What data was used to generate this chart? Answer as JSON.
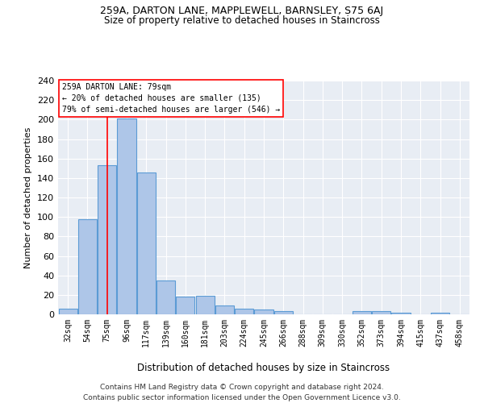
{
  "title": "259A, DARTON LANE, MAPPLEWELL, BARNSLEY, S75 6AJ",
  "subtitle": "Size of property relative to detached houses in Staincross",
  "xlabel": "Distribution of detached houses by size in Staincross",
  "ylabel": "Number of detached properties",
  "categories": [
    "32sqm",
    "54sqm",
    "75sqm",
    "96sqm",
    "117sqm",
    "139sqm",
    "160sqm",
    "181sqm",
    "203sqm",
    "224sqm",
    "245sqm",
    "266sqm",
    "288sqm",
    "309sqm",
    "330sqm",
    "352sqm",
    "373sqm",
    "394sqm",
    "415sqm",
    "437sqm",
    "458sqm"
  ],
  "values": [
    6,
    98,
    153,
    201,
    146,
    35,
    18,
    19,
    9,
    6,
    5,
    3,
    0,
    0,
    0,
    3,
    3,
    2,
    0,
    2,
    0
  ],
  "bar_color": "#aec6e8",
  "bar_edge_color": "#5b9bd5",
  "background_color": "#e8edf4",
  "grid_color": "#ffffff",
  "property_label": "259A DARTON LANE: 79sqm",
  "annotation_line1": "← 20% of detached houses are smaller (135)",
  "annotation_line2": "79% of semi-detached houses are larger (546) →",
  "vline_x_index": 2.0,
  "ylim": [
    0,
    240
  ],
  "yticks": [
    0,
    20,
    40,
    60,
    80,
    100,
    120,
    140,
    160,
    180,
    200,
    220,
    240
  ],
  "footer_line1": "Contains HM Land Registry data © Crown copyright and database right 2024.",
  "footer_line2": "Contains public sector information licensed under the Open Government Licence v3.0.",
  "title_fontsize": 9,
  "subtitle_fontsize": 8.5
}
